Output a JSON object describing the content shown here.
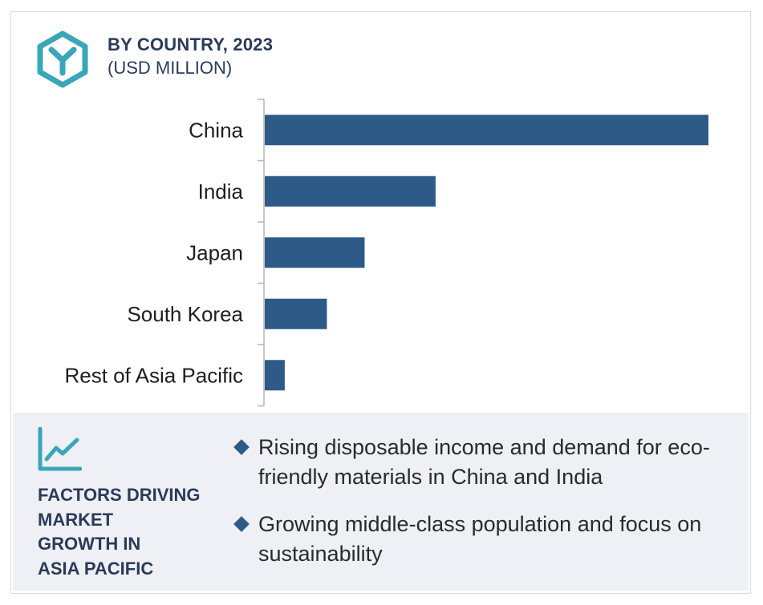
{
  "header": {
    "title": "BY COUNTRY, 2023",
    "subtitle": "(USD MILLION)",
    "logo_icon": "hexagon-y-logo-icon"
  },
  "colors": {
    "bar": "#2d5a87",
    "accent": "#3aa6b9",
    "heading": "#2a3a58",
    "panel_bg": "#eef0f5"
  },
  "chart_data": {
    "type": "bar",
    "orientation": "horizontal",
    "title": "BY COUNTRY, 2023",
    "subtitle": "(USD MILLION)",
    "categories": [
      "China",
      "India",
      "Japan",
      "South Korea",
      "Rest of Asia Pacific"
    ],
    "values": [
      100,
      38.5,
      22.5,
      14,
      4.5
    ],
    "xlim": [
      0,
      100
    ],
    "grid": false,
    "legend": "none",
    "axis_ticks": false
  },
  "factors": {
    "icon": "trend-chart-icon",
    "heading_lines": [
      "FACTORS DRIVING",
      "MARKET",
      "GROWTH IN",
      "ASIA PACIFIC"
    ],
    "items": [
      "Rising disposable income and demand for eco-friendly materials in China and India",
      "Growing middle-class population and focus on sustainability"
    ]
  }
}
